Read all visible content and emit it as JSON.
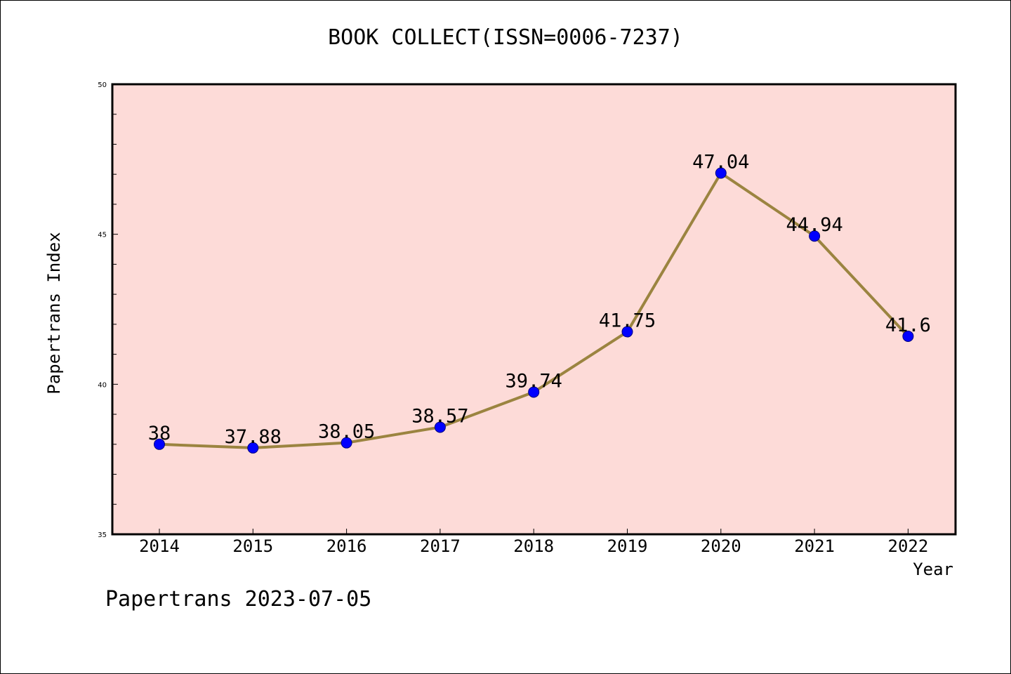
{
  "page": {
    "footer_text": "Papertrans 2023-07-05"
  },
  "chart_data": {
    "type": "line",
    "title": "BOOK COLLECT(ISSN=0006-7237)",
    "xlabel": "Year",
    "ylabel": "Papertrans Index",
    "categories": [
      "2014",
      "2015",
      "2016",
      "2017",
      "2018",
      "2019",
      "2020",
      "2021",
      "2022"
    ],
    "values": [
      38,
      37.88,
      38.05,
      38.57,
      39.74,
      41.75,
      47.04,
      44.94,
      41.6
    ],
    "data_labels": [
      "38",
      "37.88",
      "38.05",
      "38.57",
      "39.74",
      "41.75",
      "47.04",
      "44.94",
      "41.6"
    ],
    "ylim": [
      35,
      50
    ],
    "yticks": [
      35,
      40,
      45,
      50
    ],
    "ytick_labels": [
      "35",
      "40",
      "45",
      "50"
    ],
    "grid": false,
    "colors": {
      "plot_background": "#fddbd8",
      "line": "#9b8440",
      "marker": "#0000ff",
      "marker_edge": "#000080"
    }
  }
}
